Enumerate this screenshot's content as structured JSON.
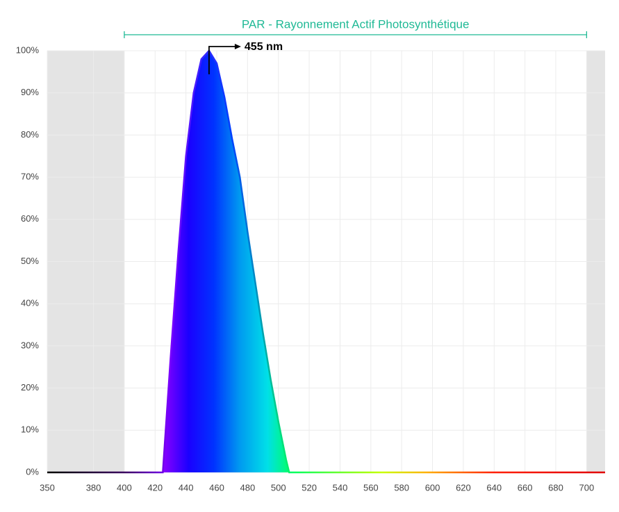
{
  "chart_data": {
    "type": "area",
    "bracket": {
      "label": "PAR - Rayonnement Actif Photosynthétique",
      "range": [
        400,
        700
      ]
    },
    "annotation": {
      "text": "455 nm",
      "x": 455,
      "y": 100
    },
    "x": [
      350,
      425,
      430,
      435,
      440,
      445,
      450,
      455,
      460,
      465,
      470,
      475,
      480,
      485,
      490,
      495,
      500,
      505,
      507,
      712
    ],
    "values": [
      0,
      0,
      27,
      52,
      75,
      90,
      98,
      100,
      97,
      89,
      79,
      70,
      57,
      45,
      33,
      22,
      12,
      3,
      0,
      0
    ],
    "xlim": [
      350,
      712
    ],
    "xticks": [
      350,
      380,
      400,
      420,
      440,
      460,
      480,
      500,
      520,
      540,
      560,
      580,
      600,
      620,
      640,
      660,
      680,
      700
    ],
    "ylim": [
      0,
      100
    ],
    "yticks": [
      {
        "value": 0,
        "label": "0%"
      },
      {
        "value": 10,
        "label": "10%"
      },
      {
        "value": 20,
        "label": "20%"
      },
      {
        "value": 30,
        "label": "30%"
      },
      {
        "value": 40,
        "label": "40%"
      },
      {
        "value": 50,
        "label": "50%"
      },
      {
        "value": 60,
        "label": "60%"
      },
      {
        "value": 70,
        "label": "70%"
      },
      {
        "value": 80,
        "label": "80%"
      },
      {
        "value": 90,
        "label": "90%"
      },
      {
        "value": 100,
        "label": "100%"
      }
    ],
    "grid": true
  }
}
